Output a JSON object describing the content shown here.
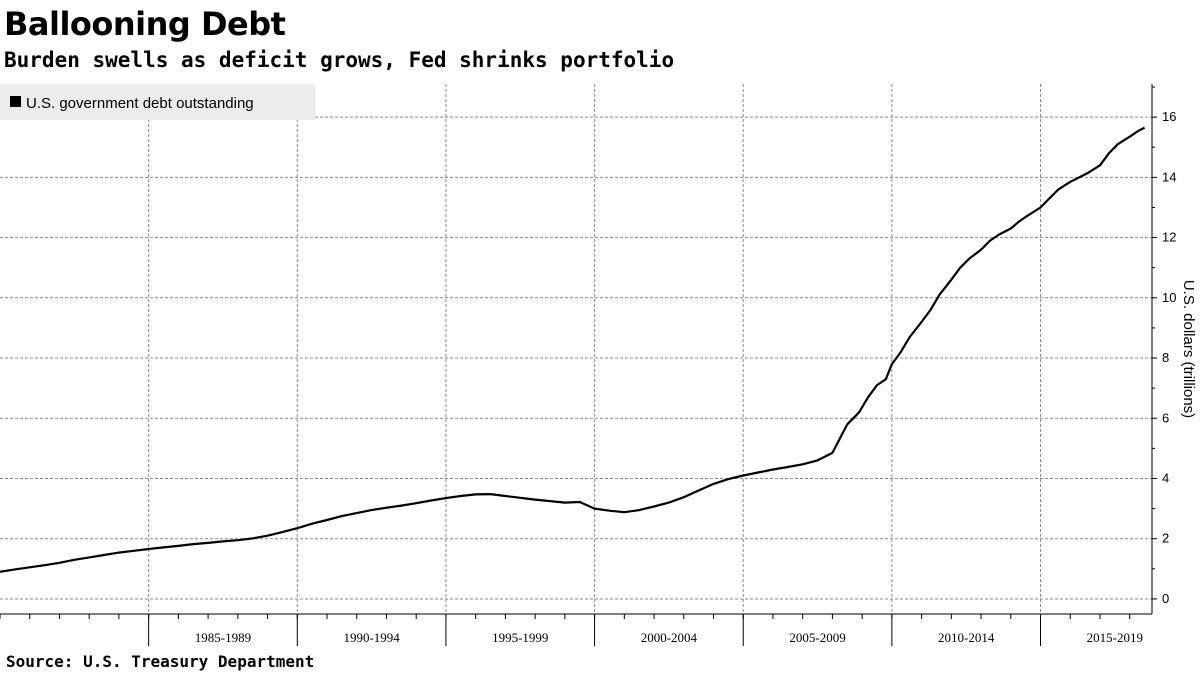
{
  "title": "Ballooning Debt",
  "subtitle": "Burden swells as deficit grows, Fed shrinks portfolio",
  "source": "Source: U.S. Treasury Department",
  "chart_data": {
    "type": "line",
    "legend": {
      "entries": [
        "U.S. government debt outstanding"
      ],
      "placement": "top-left"
    },
    "ylabel": "U.S. dollars (trillions)",
    "y_axis_side": "right",
    "ylim": [
      -0.5,
      17.1
    ],
    "yticks": [
      0,
      2,
      4,
      6,
      8,
      10,
      12,
      14,
      16
    ],
    "xlim": [
      1980.0,
      2018.75
    ],
    "x_period_labels": [
      "1985-1989",
      "1990-1994",
      "1995-1999",
      "2000-2004",
      "2005-2009",
      "2010-2014",
      "2015-2019"
    ],
    "grid": true,
    "series_color": "#000000",
    "series": [
      {
        "name": "U.S. government debt outstanding",
        "x": [
          1980.0,
          1980.5,
          1981.0,
          1981.5,
          1982.0,
          1982.5,
          1983.0,
          1983.5,
          1984.0,
          1984.5,
          1985.0,
          1985.5,
          1986.0,
          1986.5,
          1987.0,
          1987.5,
          1988.0,
          1988.5,
          1989.0,
          1989.5,
          1990.0,
          1990.5,
          1991.0,
          1991.5,
          1992.0,
          1992.5,
          1993.0,
          1993.5,
          1994.0,
          1994.5,
          1995.0,
          1995.5,
          1996.0,
          1996.5,
          1997.0,
          1997.5,
          1998.0,
          1998.5,
          1999.0,
          1999.5,
          2000.0,
          2000.5,
          2001.0,
          2001.5,
          2002.0,
          2002.5,
          2003.0,
          2003.5,
          2004.0,
          2004.5,
          2005.0,
          2005.5,
          2006.0,
          2006.5,
          2007.0,
          2007.5,
          2008.0,
          2008.5,
          2008.9,
          2009.2,
          2009.5,
          2009.8,
          2010.0,
          2010.3,
          2010.6,
          2011.0,
          2011.3,
          2011.6,
          2012.0,
          2012.3,
          2012.6,
          2013.0,
          2013.3,
          2013.6,
          2014.0,
          2014.3,
          2014.6,
          2015.0,
          2015.3,
          2015.6,
          2016.0,
          2016.3,
          2016.6,
          2017.0,
          2017.3,
          2017.6,
          2018.0,
          2018.3,
          2018.5
        ],
        "values": [
          0.9,
          0.98,
          1.05,
          1.12,
          1.2,
          1.3,
          1.38,
          1.46,
          1.54,
          1.6,
          1.66,
          1.71,
          1.76,
          1.82,
          1.86,
          1.91,
          1.95,
          2.01,
          2.1,
          2.22,
          2.35,
          2.5,
          2.62,
          2.75,
          2.85,
          2.95,
          3.03,
          3.1,
          3.18,
          3.27,
          3.35,
          3.42,
          3.47,
          3.48,
          3.42,
          3.36,
          3.3,
          3.25,
          3.2,
          3.22,
          3.0,
          2.93,
          2.88,
          2.95,
          3.07,
          3.2,
          3.38,
          3.6,
          3.82,
          3.98,
          4.1,
          4.2,
          4.3,
          4.38,
          4.47,
          4.6,
          4.85,
          5.8,
          6.2,
          6.7,
          7.1,
          7.3,
          7.8,
          8.2,
          8.7,
          9.2,
          9.6,
          10.1,
          10.6,
          11.0,
          11.3,
          11.6,
          11.9,
          12.1,
          12.3,
          12.55,
          12.75,
          13.0,
          13.3,
          13.6,
          13.85,
          14.0,
          14.15,
          14.4,
          14.8,
          15.1,
          15.35,
          15.55,
          15.65
        ]
      }
    ]
  }
}
